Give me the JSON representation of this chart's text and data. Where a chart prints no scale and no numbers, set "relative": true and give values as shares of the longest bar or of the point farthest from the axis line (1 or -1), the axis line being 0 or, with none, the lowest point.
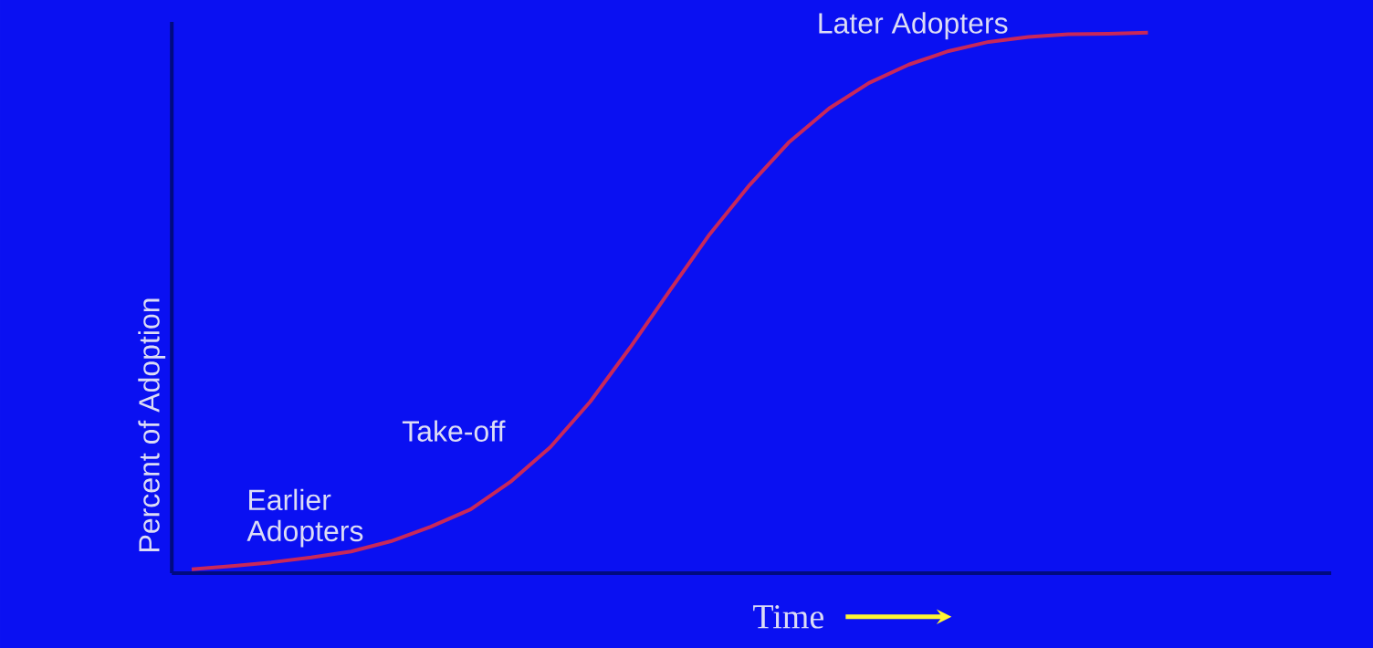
{
  "chart_data": {
    "type": "line",
    "xlabel": "Time",
    "ylabel": "Percent of Adoption",
    "relative": true,
    "color": "#c8285a",
    "categories": [
      null,
      null,
      null,
      null,
      null,
      null,
      null,
      null,
      null,
      null,
      null,
      null,
      null,
      null,
      null,
      null,
      null,
      null,
      null,
      null,
      null,
      null,
      null,
      null,
      null
    ],
    "values": [
      0.007,
      0.013,
      0.02,
      0.029,
      0.04,
      0.059,
      0.086,
      0.118,
      0.169,
      0.233,
      0.317,
      0.417,
      0.523,
      0.627,
      0.718,
      0.798,
      0.86,
      0.907,
      0.941,
      0.966,
      0.983,
      0.992,
      0.997,
      0.998,
      1
    ],
    "annotations": [
      "Earlier Adopters",
      "Take-off",
      "Later Adopters"
    ]
  }
}
